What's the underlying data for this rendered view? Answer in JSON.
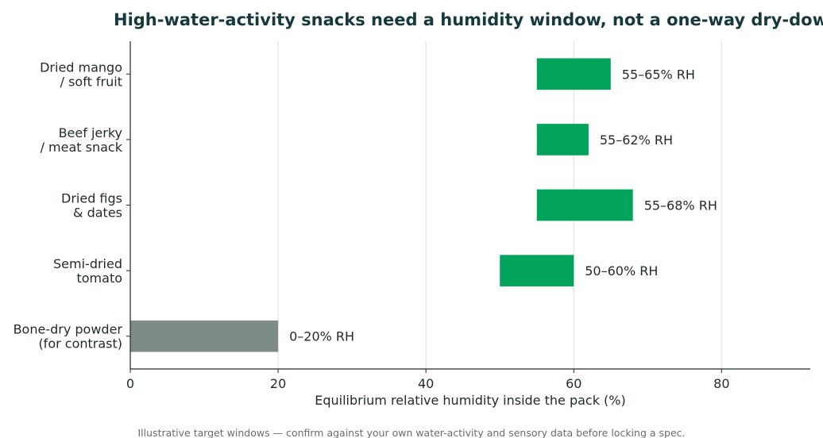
{
  "chart_data": {
    "type": "bar",
    "orientation": "horizontal",
    "title": "High-water-activity snacks need a humidity window, not a one-way dry-down",
    "xlabel": "Equilibrium relative humidity inside the pack (%)",
    "ylabel": "",
    "xlim": [
      0,
      92
    ],
    "xticks": [
      0,
      20,
      40,
      60,
      80
    ],
    "grid": "vertical",
    "footnote": "Illustrative target windows — confirm against your own water-activity and sensory data before locking a spec.",
    "categories": [
      {
        "line1": "Dried mango",
        "line2": "/ soft fruit"
      },
      {
        "line1": "Beef jerky",
        "line2": "/ meat snack"
      },
      {
        "line1": "Dried figs",
        "line2": "& dates"
      },
      {
        "line1": "Semi-dried",
        "line2": "tomato"
      },
      {
        "line1": "Bone-dry powder",
        "line2": "(for contrast)"
      }
    ],
    "ranges": [
      {
        "low": 55,
        "high": 65,
        "label": "55–65% RH",
        "color": "#02a35a"
      },
      {
        "low": 55,
        "high": 62,
        "label": "55–62% RH",
        "color": "#02a35a"
      },
      {
        "low": 55,
        "high": 68,
        "label": "55–68% RH",
        "color": "#02a35a"
      },
      {
        "low": 50,
        "high": 60,
        "label": "50–60% RH",
        "color": "#02a35a"
      },
      {
        "low": 0,
        "high": 20,
        "label": "0–20% RH",
        "color": "#7e8c88"
      }
    ],
    "colors": {
      "accent": "#02a35a",
      "contrast": "#7e8c88",
      "grid": "#e3e3e3",
      "axis": "#1f2a2b",
      "title": "#17393b"
    }
  }
}
